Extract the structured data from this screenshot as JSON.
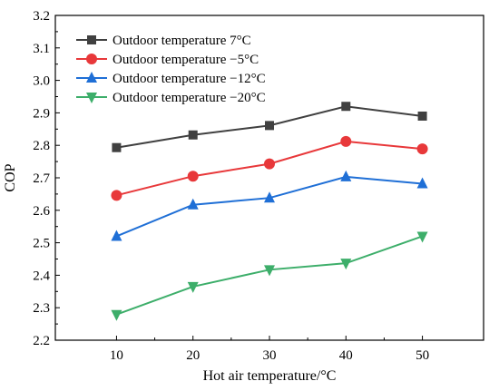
{
  "chart_data": {
    "type": "line",
    "xlabel": "Hot air temperature/°C",
    "ylabel": "COP",
    "x": [
      10,
      20,
      30,
      40,
      50
    ],
    "xlim": [
      2,
      58
    ],
    "ylim": [
      2.2,
      3.2
    ],
    "xticks": [
      "10",
      "20",
      "30",
      "40",
      "50"
    ],
    "yticks": [
      "2.2",
      "2.3",
      "2.4",
      "2.5",
      "2.6",
      "2.7",
      "2.8",
      "2.9",
      "3.0",
      "3.1",
      "3.2"
    ],
    "grid": false,
    "legend_position": "top-left",
    "series": [
      {
        "name": "Outdoor temperature 7°C",
        "values": [
          2.793,
          2.832,
          2.861,
          2.92,
          2.89
        ],
        "color": "#404040",
        "marker": "square"
      },
      {
        "name": "Outdoor temperature −5°C",
        "values": [
          2.646,
          2.705,
          2.743,
          2.812,
          2.789
        ],
        "color": "#e8383a",
        "marker": "circle"
      },
      {
        "name": "Outdoor temperature −12°C",
        "values": [
          2.52,
          2.617,
          2.638,
          2.703,
          2.682
        ],
        "color": "#1f6fd6",
        "marker": "triangle-up"
      },
      {
        "name": "Outdoor temperature −20°C",
        "values": [
          2.279,
          2.365,
          2.417,
          2.437,
          2.52
        ],
        "color": "#3dae6a",
        "marker": "triangle-down"
      }
    ]
  }
}
